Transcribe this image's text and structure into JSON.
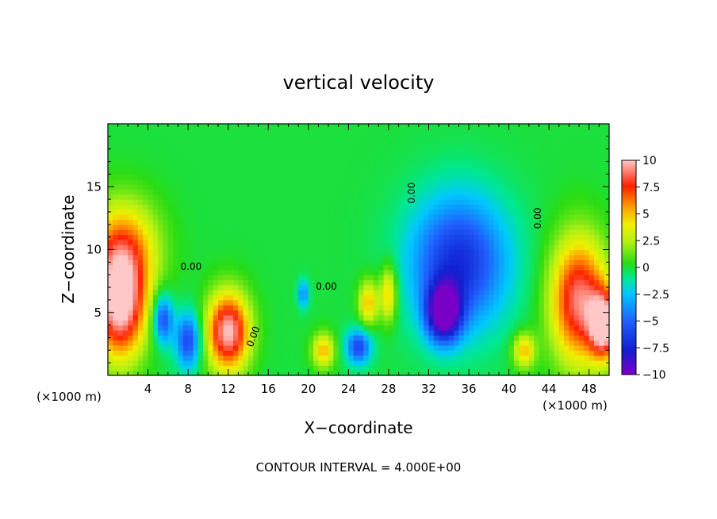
{
  "chart_data": {
    "type": "heatmap",
    "title": "vertical velocity",
    "xlabel": "X−coordinate",
    "ylabel": "Z−coordinate",
    "x_unit": "(×1000 m)",
    "y_unit": "(×1000 m)",
    "xlim": [
      0,
      50
    ],
    "ylim": [
      0,
      20
    ],
    "xticks": [
      "4",
      "8",
      "12",
      "16",
      "20",
      "24",
      "28",
      "32",
      "36",
      "40",
      "44",
      "48"
    ],
    "yticks": [
      "5",
      "10",
      "15"
    ],
    "colorbar": {
      "min": -10,
      "max": 10,
      "labels": [
        "10",
        "7.5",
        "5",
        "2.5",
        "0",
        "−2.5",
        "−5",
        "−7.5",
        "−10"
      ]
    },
    "contour_labels": [
      "0.00",
      "0.00",
      "0.00",
      "0.00",
      "0.00"
    ],
    "footer": "CONTOUR INTERVAL = 4.000E+00",
    "features": [
      {
        "x": 1.2,
        "z": 5.5,
        "value": 10,
        "sx": 1.8,
        "sz": 3.0
      },
      {
        "x": 1.5,
        "z": 10.0,
        "value": 6,
        "sx": 2.5,
        "sz": 2.8
      },
      {
        "x": 5.5,
        "z": 4.5,
        "value": -6,
        "sx": 0.7,
        "sz": 1.4
      },
      {
        "x": 8.0,
        "z": 2.8,
        "value": -6,
        "sx": 0.9,
        "sz": 1.6
      },
      {
        "x": 12.0,
        "z": 3.5,
        "value": 10,
        "sx": 1.5,
        "sz": 2.2
      },
      {
        "x": 19.5,
        "z": 6.5,
        "value": -4,
        "sx": 0.4,
        "sz": 0.8
      },
      {
        "x": 21.5,
        "z": 2.0,
        "value": 5,
        "sx": 0.8,
        "sz": 1.0
      },
      {
        "x": 25.0,
        "z": 2.3,
        "value": -6,
        "sx": 0.9,
        "sz": 1.0
      },
      {
        "x": 26.0,
        "z": 5.8,
        "value": 5,
        "sx": 0.7,
        "sz": 1.3
      },
      {
        "x": 28.0,
        "z": 6.5,
        "value": 5,
        "sx": 0.6,
        "sz": 1.6
      },
      {
        "x": 33.5,
        "z": 5.0,
        "value": -10,
        "sx": 1.2,
        "sz": 1.6
      },
      {
        "x": 35.0,
        "z": 9.0,
        "value": -7,
        "sx": 3.5,
        "sz": 3.8
      },
      {
        "x": 41.5,
        "z": 2.0,
        "value": 5,
        "sx": 0.8,
        "sz": 1.0
      },
      {
        "x": 47.0,
        "z": 6.0,
        "value": 9,
        "sx": 2.0,
        "sz": 3.5
      },
      {
        "x": 49.5,
        "z": 4.0,
        "value": 10,
        "sx": 1.0,
        "sz": 1.8
      }
    ]
  }
}
